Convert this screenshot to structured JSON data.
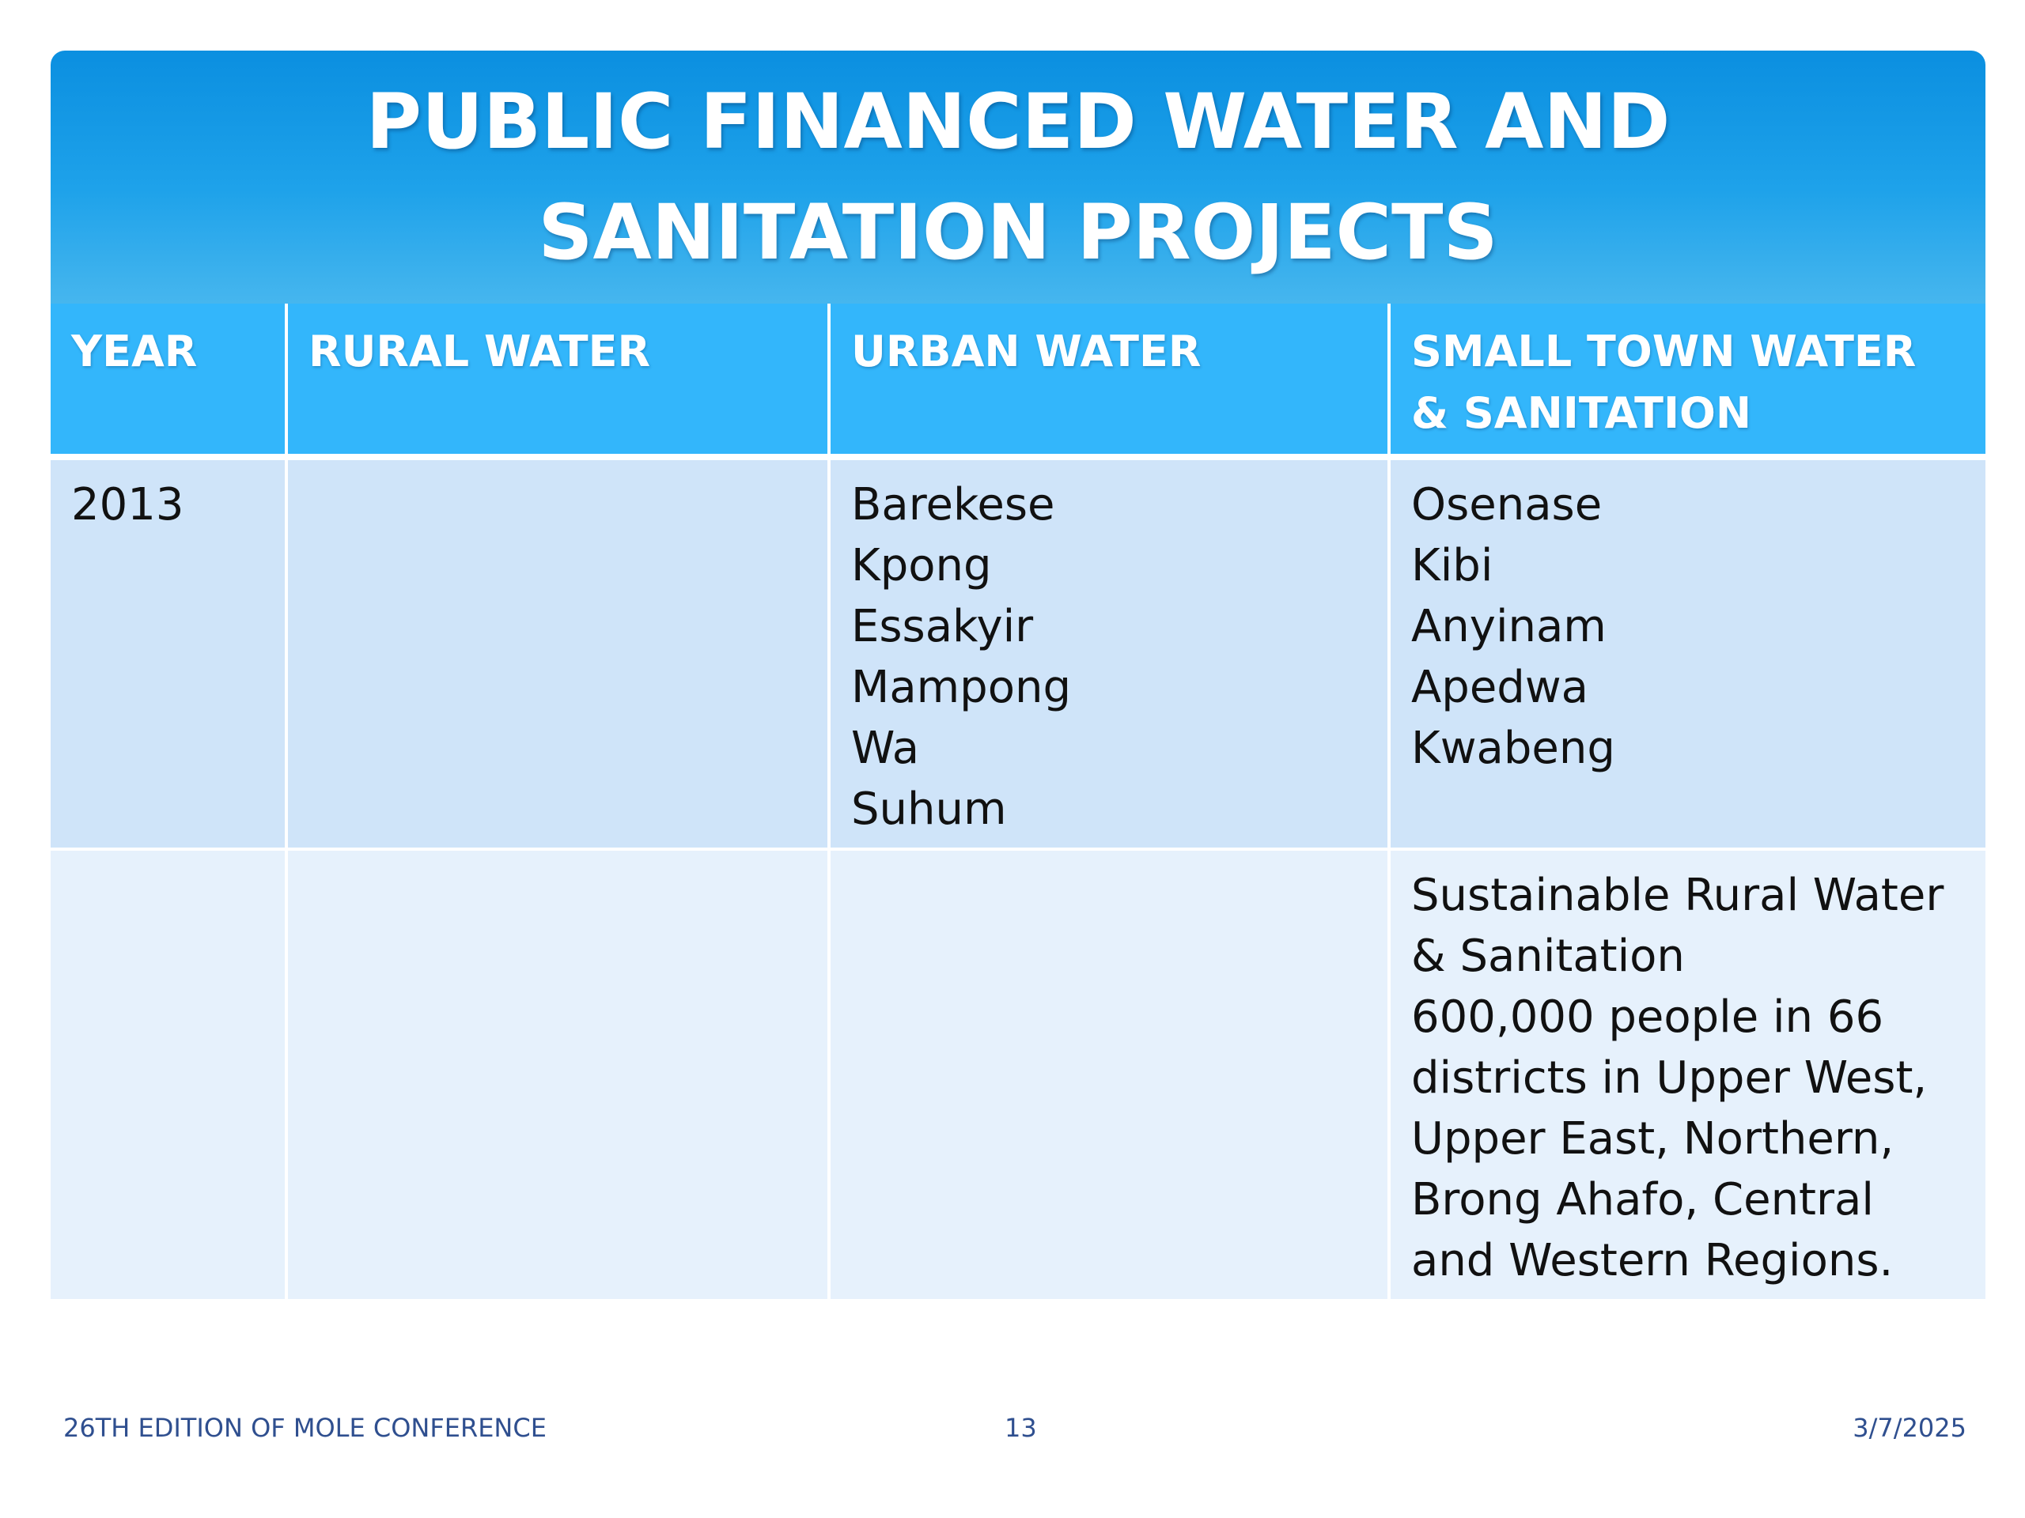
{
  "slide": {
    "title": "PUBLIC FINANCED WATER AND SANITATION PROJECTS"
  },
  "table": {
    "headers": [
      "YEAR",
      "RURAL WATER",
      "URBAN WATER",
      "SMALL TOWN WATER & SANITATION"
    ],
    "rows": [
      {
        "year": "2013",
        "rural_water": "",
        "urban_water": [
          "Barekese",
          "Kpong",
          "Essakyir",
          "Mampong",
          "Wa",
          "Suhum"
        ],
        "small_town": [
          "Osenase",
          "Kibi",
          "Anyinam",
          "Apedwa",
          "Kwabeng"
        ]
      },
      {
        "year": "",
        "rural_water": "",
        "urban_water": [],
        "small_town_paragraphs": [
          "Sustainable Rural Water & Sanitation",
          "600,000 people in 66 districts in Upper West, Upper East, Northern, Brong Ahafo, Central and Western Regions."
        ]
      }
    ]
  },
  "footer": {
    "left": "26TH EDITION OF MOLE CONFERENCE",
    "page_number": "13",
    "date": "3/7/2025"
  }
}
